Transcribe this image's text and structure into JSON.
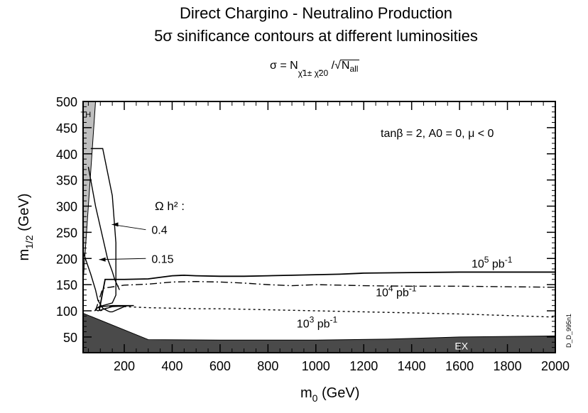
{
  "chart_data": {
    "type": "line",
    "title": "Direct Chargino - Neutralino Production",
    "subtitle": "5σ sinificance contours at different luminosities",
    "formula": {
      "prefix": "σ = N",
      "sub": "χ̃1± χ̃20",
      "slash": "/",
      "root_symbol": "√",
      "root": "N",
      "root_sub": "all"
    },
    "xlabel": {
      "base": "m",
      "sub": "0",
      "unit": " (GeV)"
    },
    "ylabel": {
      "base": "m",
      "sub": "1/2",
      "unit": " (GeV)"
    },
    "xlim": [
      0,
      2000
    ],
    "ylim": [
      0,
      500
    ],
    "xticks": [
      200,
      400,
      600,
      800,
      1000,
      1200,
      1400,
      1600,
      1800,
      2000
    ],
    "yticks": [
      50,
      100,
      150,
      200,
      250,
      300,
      350,
      400,
      450,
      500
    ],
    "params_label": "tanβ = 2,  A0 = 0,  μ < 0",
    "omega_label": "Ω h² :",
    "side_label": "D_D_995n1",
    "regions": [
      {
        "name": "TH",
        "label": "TH",
        "fill": "#bfbfbf",
        "points": [
          [
            0,
            0
          ],
          [
            0,
            500
          ],
          [
            80,
            500
          ],
          [
            20,
            100
          ],
          [
            5,
            0
          ]
        ]
      },
      {
        "name": "EX",
        "label": "EX",
        "fill": "#4a4a4a",
        "points": [
          [
            0,
            0
          ],
          [
            0,
            98
          ],
          [
            30,
            95
          ],
          [
            300,
            45
          ],
          [
            600,
            44
          ],
          [
            1000,
            44
          ],
          [
            1300,
            46
          ],
          [
            1600,
            50
          ],
          [
            2000,
            52
          ],
          [
            2000,
            0
          ]
        ]
      }
    ],
    "series": [
      {
        "name": "10^5 pb^-1",
        "label_base": "10",
        "label_exp": "5",
        "label_unit": " pb",
        "label_unit_exp": "-1",
        "style": "solid",
        "x": [
          95,
          120,
          200,
          300,
          400,
          450,
          500,
          600,
          700,
          800,
          900,
          1000,
          1100,
          1200,
          1400,
          1600,
          1800,
          2000
        ],
        "y": [
          100,
          160,
          160,
          161,
          167,
          168,
          167,
          166,
          166,
          167,
          168,
          169,
          170,
          172,
          173,
          174,
          174,
          174
        ]
      },
      {
        "name": "10^4 pb^-1",
        "label_base": "10",
        "label_exp": "4",
        "label_unit": " pb",
        "label_unit_exp": "-1",
        "style": "dashdot",
        "x": [
          80,
          110,
          200,
          300,
          400,
          500,
          600,
          700,
          800,
          900,
          1000,
          1100,
          1200,
          1400,
          1600,
          1800,
          2000
        ],
        "y": [
          100,
          143,
          149,
          151,
          155,
          156,
          155,
          153,
          150,
          148,
          150,
          149,
          148,
          147,
          147,
          146,
          145
        ]
      },
      {
        "name": "10^3 pb^-1",
        "label_base": "10",
        "label_exp": "3",
        "label_unit": " pb",
        "label_unit_exp": "-1",
        "style": "dotted",
        "x": [
          100,
          150,
          200,
          300,
          400,
          500,
          600,
          700,
          800,
          900,
          1000,
          1100,
          1200,
          1400,
          1600,
          1800,
          2000
        ],
        "y": [
          100,
          110,
          108,
          106,
          105,
          104,
          104,
          103,
          102,
          101,
          100,
          99,
          98,
          96,
          94,
          91,
          88
        ]
      }
    ],
    "relic_contours": [
      {
        "name": "0.4",
        "label": "0.4",
        "x": [
          60,
          110,
          150,
          165,
          165,
          150,
          95,
          80,
          90,
          120,
          150,
          240,
          150,
          105,
          85,
          80,
          75
        ],
        "y": [
          410,
          410,
          320,
          230,
          130,
          115,
          108,
          103,
          100,
          104,
          108,
          110,
          110,
          108,
          105,
          101,
          100
        ]
      },
      {
        "name": "0.15",
        "label": "0.15",
        "x": [
          5,
          10,
          30,
          60,
          80,
          90,
          110,
          130,
          140,
          150,
          160,
          170,
          185,
          200
        ],
        "y": [
          270,
          250,
          210,
          170,
          140,
          120,
          105,
          100,
          98,
          98,
          100,
          102,
          105,
          108
        ]
      },
      {
        "name": "0.4-long",
        "label": "",
        "x": [
          50,
          80,
          110,
          130,
          150,
          160,
          170,
          180
        ],
        "y": [
          375,
          300,
          240,
          200,
          175,
          160,
          150,
          140
        ]
      }
    ]
  }
}
